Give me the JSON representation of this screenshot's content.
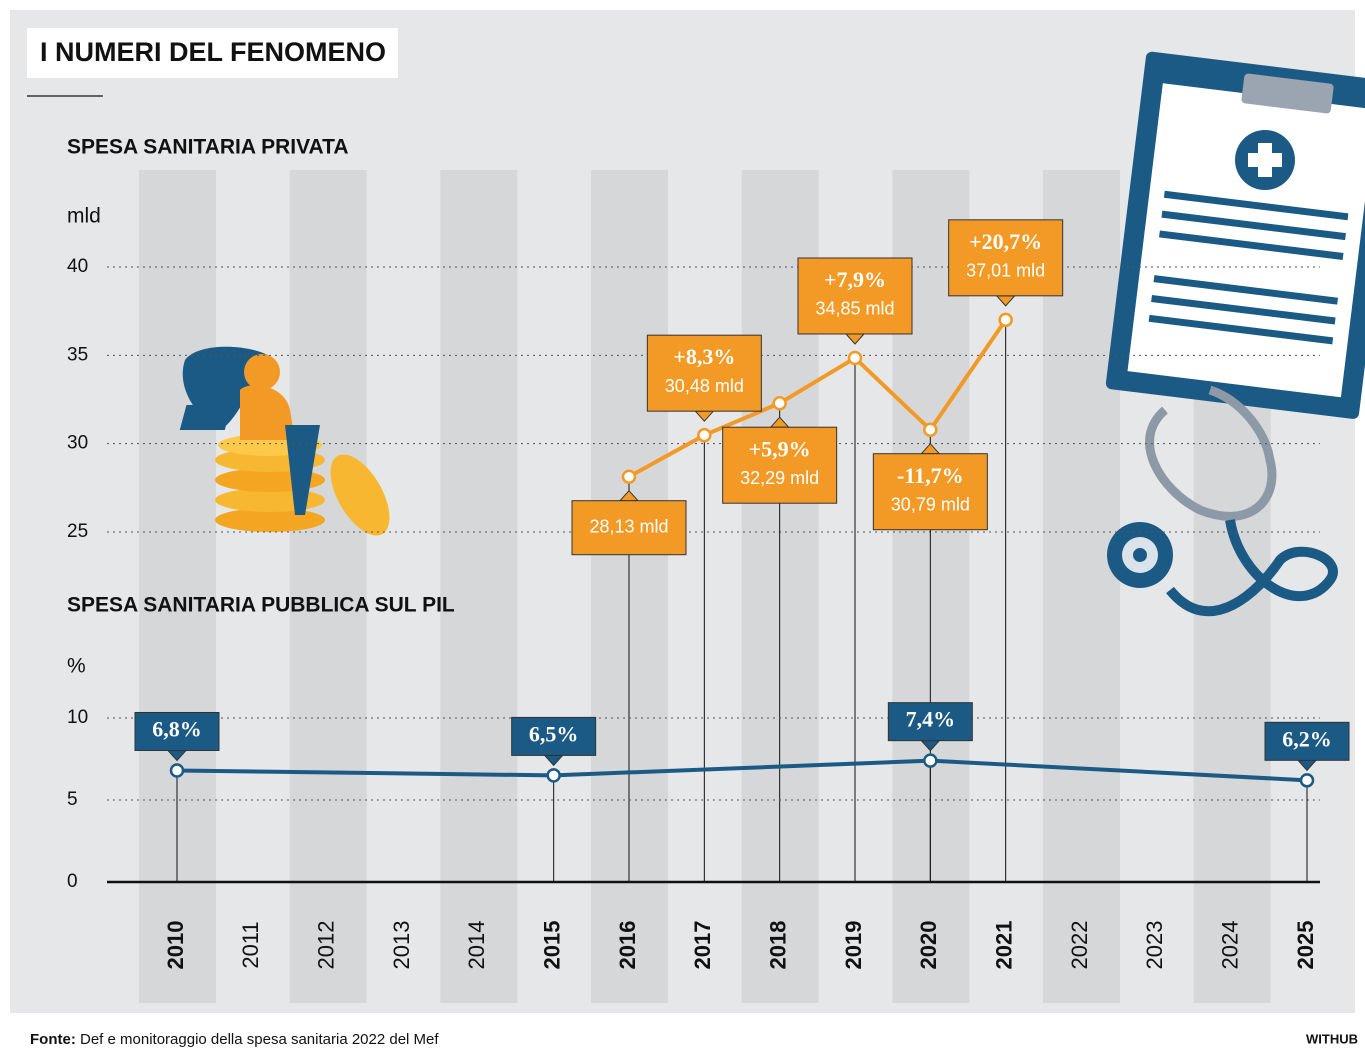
{
  "header": {
    "title": "I NUMERI DEL FENOMENO"
  },
  "chart_data": [
    {
      "type": "line",
      "title": "SPESA SANITARIA PRIVATA",
      "y_unit": "mld",
      "x": [
        2016,
        2017,
        2018,
        2019,
        2020,
        2021
      ],
      "values": [
        28.13,
        30.48,
        32.29,
        34.85,
        30.79,
        37.01
      ],
      "value_labels": [
        "28,13 mld",
        "30,48 mld",
        "32,29 mld",
        "34,85 mld",
        "30,79 mld",
        "37,01 mld"
      ],
      "change_labels": [
        null,
        "+8,3%",
        "+5,9%",
        "+7,9%",
        "-11,7%",
        "+20,7%"
      ],
      "color": "#f39a26",
      "xlim": [
        2010,
        2025
      ],
      "ylim": [
        25,
        40
      ],
      "yticks": [
        25,
        30,
        35,
        40
      ],
      "grid": true
    },
    {
      "type": "line",
      "title": "SPESA SANITARIA PUBBLICA SUL PIL",
      "y_unit": "%",
      "x": [
        2010,
        2015,
        2020,
        2025
      ],
      "values": [
        6.8,
        6.5,
        7.4,
        6.2
      ],
      "value_labels": [
        "6,8%",
        "6,5%",
        "7,4%",
        "6,2%"
      ],
      "color": "#1c5a86",
      "xlim": [
        2010,
        2025
      ],
      "xticks": [
        2010,
        2011,
        2012,
        2013,
        2014,
        2015,
        2016,
        2017,
        2018,
        2019,
        2020,
        2021,
        2022,
        2023,
        2024,
        2025
      ],
      "ylim": [
        0,
        10
      ],
      "yticks": [
        0,
        5,
        10
      ],
      "grid": true
    }
  ],
  "source": {
    "label": "Fonte:",
    "text": "Def e monitoraggio della spesa sanitaria 2022 del Mef"
  },
  "credit": "WITHUB"
}
